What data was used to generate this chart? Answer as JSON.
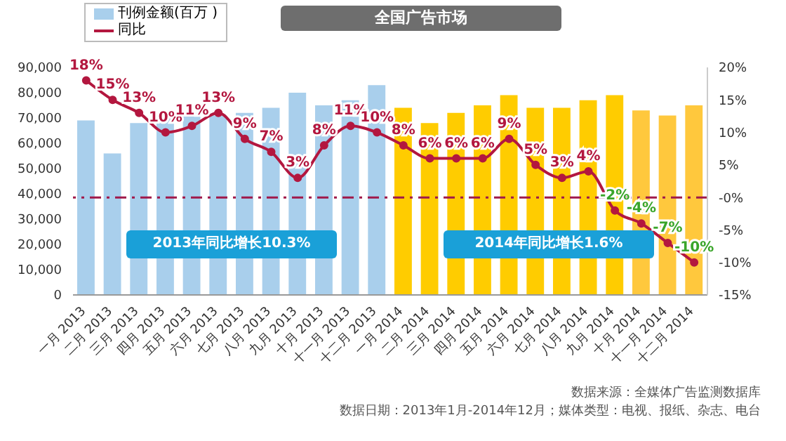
{
  "chart_data": {
    "type": "bar",
    "title": "全国广告市场",
    "categories": [
      "一月 2013",
      "二月 2013",
      "三月 2013",
      "四月 2013",
      "五月 2013",
      "六月 2013",
      "七月 2013",
      "八月 2013",
      "九月 2013",
      "十月 2013",
      "十一月 2013",
      "十二月 2013",
      "一月 2014",
      "二月 2014",
      "三月 2014",
      "四月 2014",
      "五月 2014",
      "六月 2014",
      "七月 2014",
      "八月 2014",
      "九月 2014",
      "十月 2014",
      "十一月 2014",
      "十二月 2014"
    ],
    "series": [
      {
        "name": "刊例金额(百万 )",
        "color": "#a9cfec",
        "colors": [
          "#a9cfec",
          "#a9cfec",
          "#a9cfec",
          "#a9cfec",
          "#a9cfec",
          "#a9cfec",
          "#a9cfec",
          "#a9cfec",
          "#a9cfec",
          "#a9cfec",
          "#a9cfec",
          "#a9cfec",
          "#ffcc00",
          "#ffcc00",
          "#ffcc00",
          "#ffcc00",
          "#ffcc00",
          "#ffcc00",
          "#ffcc00",
          "#ffcc00",
          "#ffcc00",
          "#ffc83d",
          "#ffc83d",
          "#ffc83d"
        ],
        "values": [
          69000,
          56000,
          68000,
          70000,
          72000,
          71000,
          72000,
          74000,
          80000,
          75000,
          77000,
          83000,
          74000,
          68000,
          72000,
          75000,
          79000,
          74000,
          74000,
          77000,
          79000,
          73000,
          71000,
          75000
        ]
      },
      {
        "name": "同比",
        "type": "line",
        "axis": "y2",
        "color": "#b3173f",
        "marker": "circle",
        "values": [
          18,
          15,
          13,
          10,
          11,
          13,
          9,
          7,
          3,
          8,
          11,
          10,
          8,
          6,
          6,
          6,
          9,
          5,
          3,
          4,
          -2,
          -4,
          -7,
          -10
        ],
        "value_labels": [
          "18%",
          "15%",
          "13%",
          "10%",
          "11%",
          "13%",
          "9%",
          "7%",
          "3%",
          "8%",
          "11%",
          "10%",
          "8%",
          "6%",
          "6%",
          "6%",
          "9%",
          "5%",
          "3%",
          "4%",
          "-2%",
          "-4%",
          "-7%",
          "-10%"
        ]
      }
    ],
    "ylim": [
      0,
      90000
    ],
    "yticks": [
      0,
      {
        "value": 10000,
        "label": "10,000"
      },
      {
        "value": 20000,
        "label": "20,000"
      },
      {
        "value": 30000,
        "label": "30,000"
      },
      {
        "value": 40000,
        "label": "40,000"
      },
      {
        "value": 50000,
        "label": "50,000"
      },
      {
        "value": 60000,
        "label": "60,000"
      },
      {
        "value": 70000,
        "label": "70,000"
      },
      {
        "value": 80000,
        "label": "80,000"
      },
      {
        "value": 90000,
        "label": "90,000"
      }
    ],
    "y2lim": [
      -15,
      20
    ],
    "y2ticks": [
      {
        "value": -15,
        "label": "-15%"
      },
      {
        "value": -10,
        "label": "-10%"
      },
      {
        "value": -5,
        "label": "-5%"
      },
      {
        "value": 0,
        "label": "-0%"
      },
      {
        "value": 5,
        "label": "5%"
      },
      {
        "value": 10,
        "label": "10%"
      },
      {
        "value": 15,
        "label": "15%"
      },
      {
        "value": 20,
        "label": "20%"
      }
    ],
    "ref_lines": [
      {
        "axis": "y2",
        "value": 0,
        "color": "#a0194a",
        "line_style": "dashdot"
      }
    ],
    "annotations": [
      "2013年同比增长10.3%",
      "2014年同比增长1.6%",
      "数据来源：全媒体广告监测数据库",
      "数据日期：2013年1月-2014年12月；媒体类型：电视、报纸、杂志、电台"
    ],
    "legend": "top left"
  }
}
